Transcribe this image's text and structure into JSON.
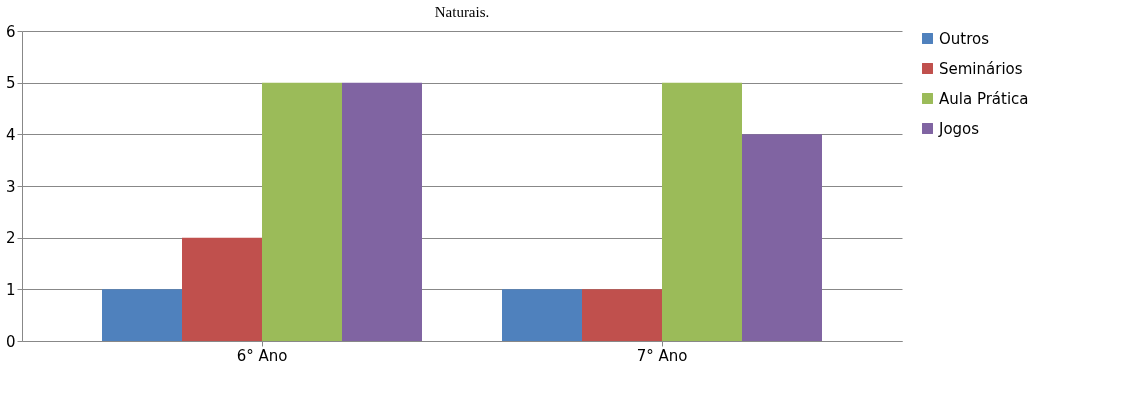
{
  "chart_data": {
    "type": "bar",
    "title": "Naturais.",
    "categories": [
      "6° Ano",
      "7° Ano"
    ],
    "series": [
      {
        "name": "Outros",
        "color": "#4f81bd",
        "values": [
          1,
          1
        ]
      },
      {
        "name": "Seminários",
        "color": "#c0504d",
        "values": [
          2,
          1
        ]
      },
      {
        "name": "Aula Prática",
        "color": "#9bbb59",
        "values": [
          5,
          5
        ]
      },
      {
        "name": "Jogos",
        "color": "#8064a2",
        "values": [
          5,
          4
        ]
      }
    ],
    "ylim": [
      0,
      6
    ],
    "yticks": [
      0,
      1,
      2,
      3,
      4,
      5,
      6
    ],
    "grid": "y",
    "legend": "right"
  }
}
